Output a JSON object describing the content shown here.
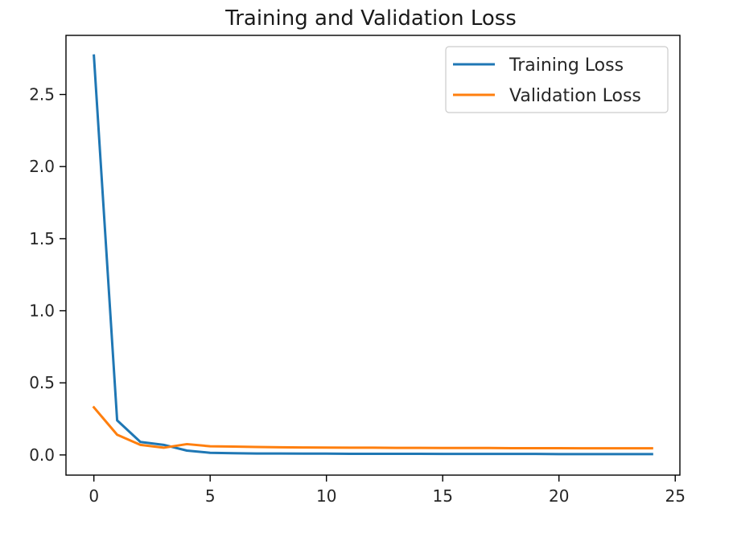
{
  "chart_data": {
    "type": "line",
    "title": "Training and Validation Loss",
    "xlabel": "",
    "ylabel": "",
    "xlim": [
      -1.2,
      25.2
    ],
    "ylim": [
      -0.14,
      2.91
    ],
    "xticks": [
      0,
      5,
      10,
      15,
      20,
      25
    ],
    "yticks": [
      0.0,
      0.5,
      1.0,
      1.5,
      2.0,
      2.5
    ],
    "xtick_labels": [
      "0",
      "5",
      "10",
      "15",
      "20",
      "25"
    ],
    "ytick_labels": [
      "0.0",
      "0.5",
      "1.0",
      "1.5",
      "2.0",
      "2.5"
    ],
    "grid": false,
    "legend_position": "upper-right",
    "x": [
      0,
      1,
      2,
      3,
      4,
      5,
      6,
      7,
      8,
      9,
      10,
      11,
      12,
      13,
      14,
      15,
      16,
      17,
      18,
      19,
      20,
      21,
      22,
      23,
      24
    ],
    "series": [
      {
        "name": "Training Loss",
        "color": "#1f77b4",
        "values": [
          2.77,
          0.24,
          0.09,
          0.07,
          0.03,
          0.015,
          0.012,
          0.01,
          0.01,
          0.009,
          0.009,
          0.008,
          0.008,
          0.008,
          0.008,
          0.007,
          0.007,
          0.007,
          0.007,
          0.007,
          0.006,
          0.006,
          0.006,
          0.006,
          0.006
        ]
      },
      {
        "name": "Validation Loss",
        "color": "#ff7f0e",
        "values": [
          0.33,
          0.14,
          0.07,
          0.05,
          0.075,
          0.06,
          0.058,
          0.055,
          0.053,
          0.052,
          0.051,
          0.05,
          0.05,
          0.049,
          0.049,
          0.048,
          0.048,
          0.048,
          0.047,
          0.047,
          0.047,
          0.046,
          0.046,
          0.046,
          0.046
        ]
      }
    ]
  }
}
